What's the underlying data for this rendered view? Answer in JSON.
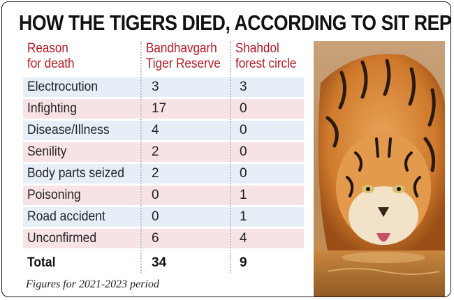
{
  "title": "HOW THE TIGERS DIED, ACCORDING TO SIT REPORT",
  "footnote": "Figures for 2021-2023 period",
  "colors": {
    "header_text": "#b8161f",
    "row_blue": "#e6eef8",
    "row_pink": "#f7e3e5"
  },
  "chart_data": {
    "type": "table",
    "title": "HOW THE TIGERS DIED, ACCORDING TO SIT REPORT",
    "columns": [
      [
        "Reason",
        "for death"
      ],
      [
        "Bandhavgarh",
        "Tiger Reserve"
      ],
      [
        "Shahdol",
        "forest circle"
      ]
    ],
    "rows": [
      {
        "reason": "Electrocution",
        "bandhavgarh": "3",
        "shahdol": "3"
      },
      {
        "reason": "Infighting",
        "bandhavgarh": "17",
        "shahdol": "0"
      },
      {
        "reason": "Disease/Illness",
        "bandhavgarh": "4",
        "shahdol": "0"
      },
      {
        "reason": "Senility",
        "bandhavgarh": "2",
        "shahdol": "0"
      },
      {
        "reason": "Body parts seized",
        "bandhavgarh": "2",
        "shahdol": "0"
      },
      {
        "reason": "Poisoning",
        "bandhavgarh": "0",
        "shahdol": "1"
      },
      {
        "reason": "Road accident",
        "bandhavgarh": "0",
        "shahdol": "1"
      },
      {
        "reason": "Unconfirmed",
        "bandhavgarh": "6",
        "shahdol": "4"
      }
    ],
    "total": {
      "reason": "Total",
      "bandhavgarh": "34",
      "shahdol": "9"
    }
  },
  "photo": {
    "subject": "tiger drinking water",
    "icon": "tiger-photo"
  }
}
